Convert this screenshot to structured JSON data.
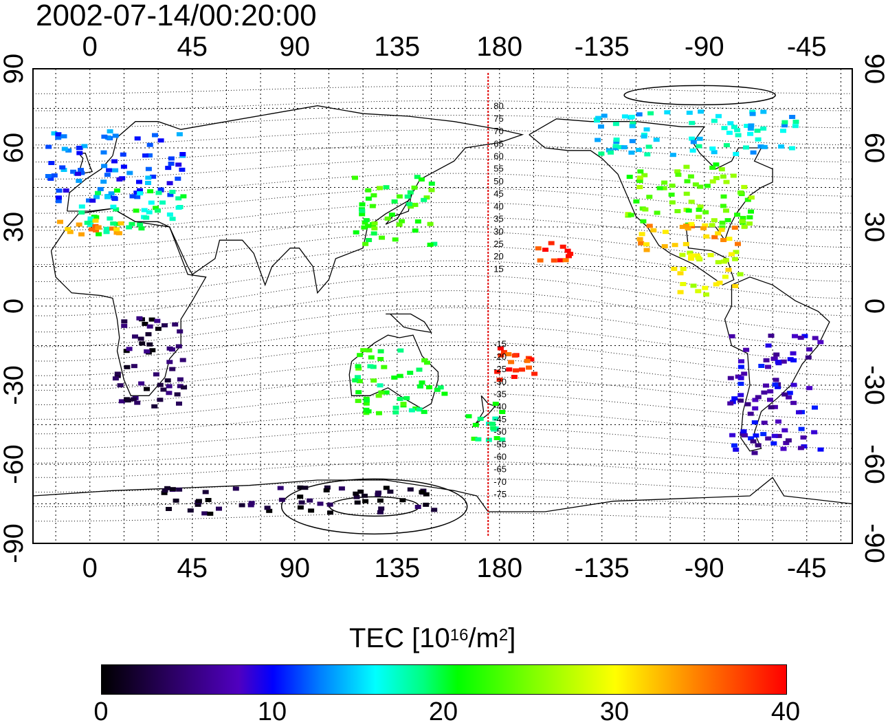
{
  "title": "2002-07-14/00:20:00",
  "map": {
    "lon_tick_labels": [
      "0",
      "45",
      "90",
      "135",
      "180",
      "-135",
      "-90",
      "-45"
    ],
    "lat_tick_labels": [
      "90",
      "60",
      "30",
      "0",
      "-30",
      "-60",
      "-90"
    ],
    "lon_range": [
      -25,
      335
    ],
    "lat_range": [
      -90,
      90
    ],
    "grid": true,
    "meridian_line_color": "#e00000",
    "contour_labels": {
      "north": [
        "80",
        "75",
        "70",
        "65",
        "60",
        "55",
        "50",
        "45",
        "40",
        "35",
        "30",
        "25",
        "20",
        "15"
      ],
      "south": [
        "-15",
        "-20",
        "-25",
        "-30",
        "-35",
        "-40",
        "-45",
        "-50",
        "-55",
        "-60",
        "-65",
        "-70",
        "-75"
      ]
    }
  },
  "colorbar": {
    "label_main": "TEC  [10",
    "label_exp1": "16",
    "label_mid": "/m",
    "label_exp2": "2",
    "label_end": "]",
    "ticks": [
      "0",
      "10",
      "20",
      "30",
      "40"
    ],
    "range": [
      0,
      40
    ]
  },
  "tec_clusters": [
    {
      "region": "europe",
      "lon": [
        -20,
        40
      ],
      "lat": [
        40,
        68
      ],
      "tec": 12
    },
    {
      "region": "europe-south",
      "lon": [
        -5,
        40
      ],
      "lat": [
        28,
        45
      ],
      "tec": 19
    },
    {
      "region": "north-africa",
      "lon": [
        -15,
        20
      ],
      "lat": [
        28,
        34
      ],
      "tec": 34
    },
    {
      "region": "east-asia",
      "lon": [
        115,
        150
      ],
      "lat": [
        24,
        50
      ],
      "tec": 22
    },
    {
      "region": "north-america",
      "lon": [
        235,
        290
      ],
      "lat": [
        30,
        55
      ],
      "tec": 24
    },
    {
      "region": "us-south",
      "lon": [
        240,
        285
      ],
      "lat": [
        22,
        32
      ],
      "tec": 33
    },
    {
      "region": "hawaii",
      "lon": [
        195,
        210
      ],
      "lat": [
        18,
        25
      ],
      "tec": 38
    },
    {
      "region": "central-america",
      "lon": [
        255,
        285
      ],
      "lat": [
        5,
        22
      ],
      "tec": 29
    },
    {
      "region": "canada-north",
      "lon": [
        220,
        310
      ],
      "lat": [
        58,
        75
      ],
      "tec": 16
    },
    {
      "region": "south-america",
      "lon": [
        280,
        320
      ],
      "lat": [
        -55,
        -10
      ],
      "tec": 8
    },
    {
      "region": "africa",
      "lon": [
        10,
        40
      ],
      "lat": [
        -38,
        -2
      ],
      "tec": 3
    },
    {
      "region": "australia",
      "lon": [
        115,
        155
      ],
      "lat": [
        -40,
        -15
      ],
      "tec": 21
    },
    {
      "region": "new-zealand",
      "lon": [
        165,
        180
      ],
      "lat": [
        -50,
        -35
      ],
      "tec": 20
    },
    {
      "region": "pacific-south",
      "lon": [
        175,
        195
      ],
      "lat": [
        -28,
        -15
      ],
      "tec": 38
    },
    {
      "region": "antarctica",
      "lon": [
        30,
        150
      ],
      "lat": [
        -78,
        -68
      ],
      "tec": 2
    }
  ]
}
